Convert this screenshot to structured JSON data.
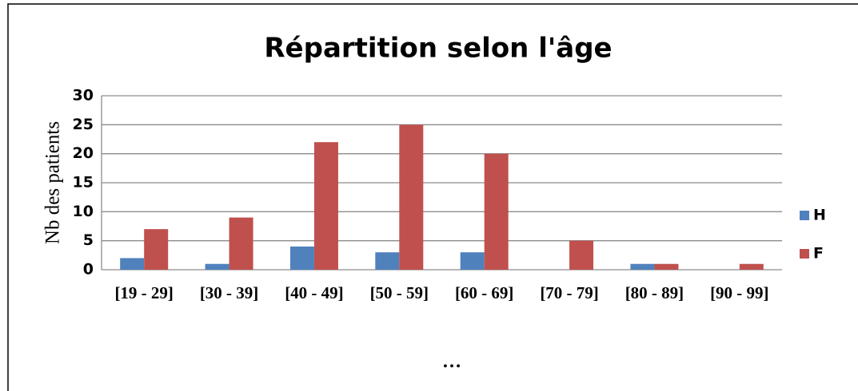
{
  "chart_data": {
    "type": "bar",
    "title": "Répartition selon l'âge",
    "y_label": "Nb des patients",
    "categories": [
      "[19 - 29]",
      "[30 - 39]",
      "[40 - 49]",
      "[50 - 59]",
      "[60 - 69]",
      "[70 - 79]",
      "[80 - 89]",
      "[90 - 99]"
    ],
    "series": [
      {
        "name": "H",
        "color": "#4f81bd",
        "values": [
          2,
          1,
          4,
          3,
          3,
          0,
          1,
          0
        ]
      },
      {
        "name": "F",
        "color": "#c0504d",
        "values": [
          7,
          9,
          22,
          25,
          20,
          5,
          1,
          1
        ]
      }
    ],
    "ylim": [
      0,
      30
    ],
    "yticks": [
      0,
      5,
      10,
      15,
      20,
      25,
      30
    ],
    "grid": true,
    "legend": "right",
    "annotation": "…"
  }
}
